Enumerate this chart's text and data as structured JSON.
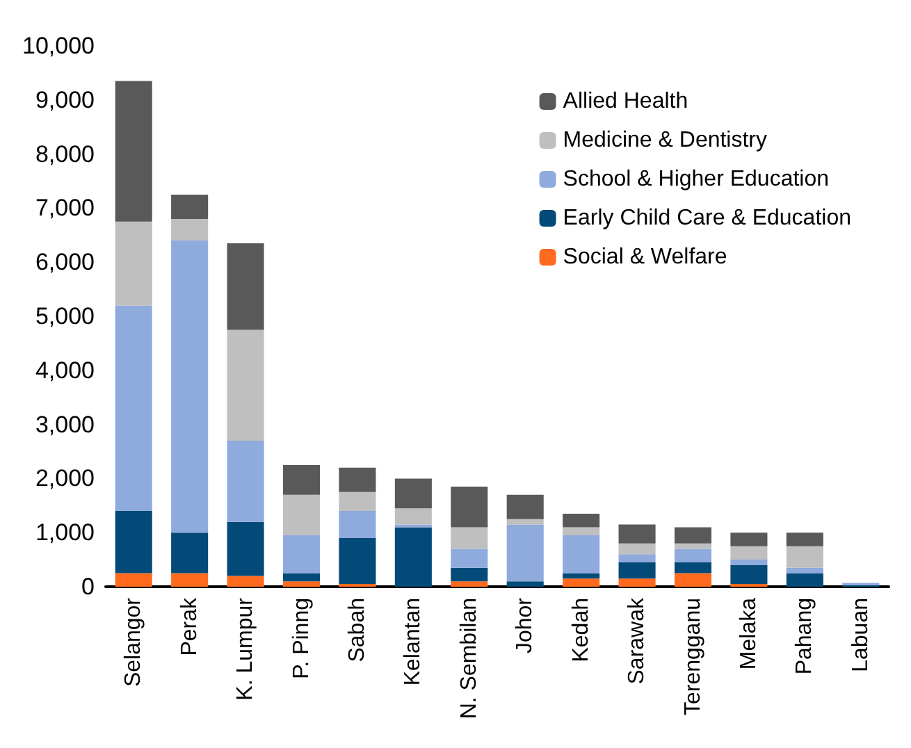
{
  "chart_data": {
    "type": "bar",
    "stacked": true,
    "categories": [
      "Selangor",
      "Perak",
      "K. Lumpur",
      "P. Pinng",
      "Sabah",
      "Kelantan",
      "N. Sembilan",
      "Johor",
      "Kedah",
      "Sarawak",
      "Terengganu",
      "Melaka",
      "Pahang",
      "Labuan"
    ],
    "series": [
      {
        "name": "Social & Welfare",
        "color": "#ff6a1f",
        "values": [
          250,
          250,
          200,
          100,
          50,
          null,
          100,
          null,
          150,
          150,
          250,
          50,
          null,
          null
        ]
      },
      {
        "name": "Early Child Care & Education",
        "color": "#044a78",
        "values": [
          1150,
          750,
          1000,
          150,
          850,
          1100,
          250,
          100,
          100,
          300,
          200,
          350,
          250,
          30
        ]
      },
      {
        "name": "School & Higher Education",
        "color": "#8faadc",
        "values": [
          3800,
          5400,
          1500,
          700,
          500,
          50,
          350,
          1050,
          700,
          150,
          250,
          100,
          100,
          40
        ]
      },
      {
        "name": "Medicine & Dentistry",
        "color": "#bfbfbf",
        "values": [
          1550,
          400,
          2050,
          750,
          350,
          300,
          400,
          100,
          150,
          200,
          100,
          250,
          400,
          null
        ]
      },
      {
        "name": "Allied Health",
        "color": "#595959",
        "values": [
          2600,
          450,
          1600,
          550,
          450,
          550,
          750,
          450,
          250,
          350,
          300,
          250,
          250,
          null
        ]
      }
    ],
    "ylim": [
      0,
      10000
    ],
    "yticks": [
      0,
      {
        "value": 1000,
        "label": "1,000"
      },
      {
        "value": 2000,
        "label": "2,000"
      },
      {
        "value": 3000,
        "label": "3,000"
      },
      {
        "value": 4000,
        "label": "4,000"
      },
      {
        "value": 5000,
        "label": "5,000"
      },
      {
        "value": 6000,
        "label": "6,000"
      },
      {
        "value": 7000,
        "label": "7,000"
      },
      {
        "value": 8000,
        "label": "8,000"
      },
      {
        "value": 9000,
        "label": "9,000"
      },
      {
        "value": 10000,
        "label": "10,000"
      }
    ],
    "grid": false,
    "legend": "top right"
  }
}
